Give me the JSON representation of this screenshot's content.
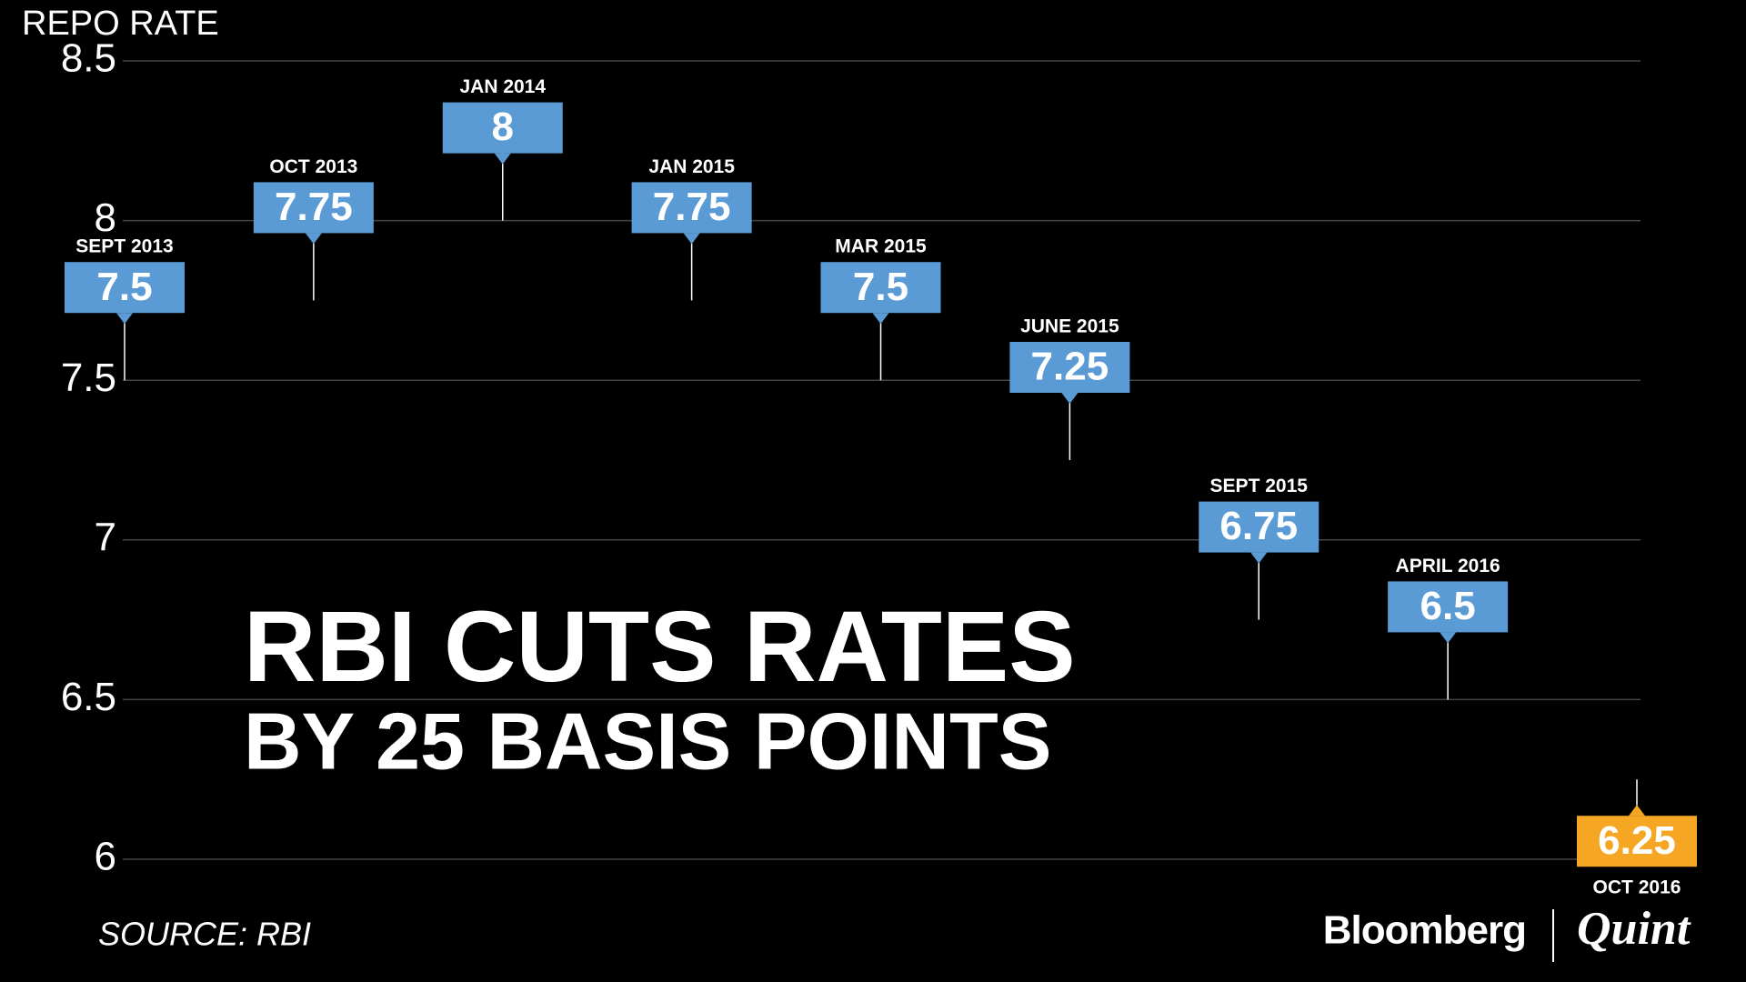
{
  "chart_data": {
    "type": "step",
    "y_label": "REPO RATE",
    "headline": "RBI CUTS RATES",
    "subheadline": "BY 25 BASIS POINTS",
    "source": "SOURCE: RBI",
    "brand": [
      "Bloomberg",
      "Quint"
    ],
    "categories": [
      "SEPT 2013",
      "OCT 2013",
      "JAN 2014",
      "JAN 2015",
      "MAR 2015",
      "JUNE 2015",
      "SEPT 2015",
      "APRIL 2016",
      "OCT 2016"
    ],
    "values": [
      7.5,
      7.75,
      8,
      7.75,
      7.5,
      7.25,
      6.75,
      6.5,
      6.25
    ],
    "line_color": "#5aa0e6",
    "point_colors": [
      "#5b9bd5",
      "#5b9bd5",
      "#5b9bd5",
      "#5b9bd5",
      "#5b9bd5",
      "#5b9bd5",
      "#5b9bd5",
      "#5b9bd5",
      "#f5a623"
    ],
    "ylim": [
      6,
      8.5
    ],
    "yticks": [
      6,
      6.5,
      7,
      7.5,
      8,
      8.5
    ],
    "grid": true
  }
}
